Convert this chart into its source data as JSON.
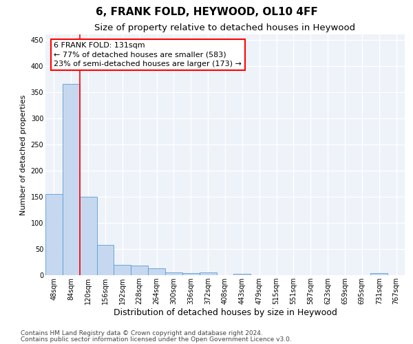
{
  "title1": "6, FRANK FOLD, HEYWOOD, OL10 4FF",
  "title2": "Size of property relative to detached houses in Heywood",
  "xlabel": "Distribution of detached houses by size in Heywood",
  "ylabel": "Number of detached properties",
  "categories": [
    "48sqm",
    "84sqm",
    "120sqm",
    "156sqm",
    "192sqm",
    "228sqm",
    "264sqm",
    "300sqm",
    "336sqm",
    "372sqm",
    "408sqm",
    "443sqm",
    "479sqm",
    "515sqm",
    "551sqm",
    "587sqm",
    "623sqm",
    "659sqm",
    "695sqm",
    "731sqm",
    "767sqm"
  ],
  "values": [
    155,
    365,
    150,
    58,
    20,
    18,
    13,
    5,
    4,
    5,
    0,
    3,
    0,
    0,
    0,
    0,
    0,
    0,
    0,
    4,
    0
  ],
  "bar_color": "#c5d8f0",
  "bar_edge_color": "#5b9bd5",
  "red_line_x": 1.5,
  "annotation_text_line1": "6 FRANK FOLD: 131sqm",
  "annotation_text_line2": "← 77% of detached houses are smaller (583)",
  "annotation_text_line3": "23% of semi-detached houses are larger (173) →",
  "annotation_box_color": "white",
  "annotation_box_edge_color": "red",
  "ylim": [
    0,
    460
  ],
  "yticks": [
    0,
    50,
    100,
    150,
    200,
    250,
    300,
    350,
    400,
    450
  ],
  "footer_line1": "Contains HM Land Registry data © Crown copyright and database right 2024.",
  "footer_line2": "Contains public sector information licensed under the Open Government Licence v3.0.",
  "bg_color": "#eef2f9",
  "grid_color": "white",
  "title1_fontsize": 11,
  "title2_fontsize": 9.5,
  "xlabel_fontsize": 9,
  "ylabel_fontsize": 8,
  "tick_fontsize": 7,
  "annot_fontsize": 8,
  "footer_fontsize": 6.5
}
